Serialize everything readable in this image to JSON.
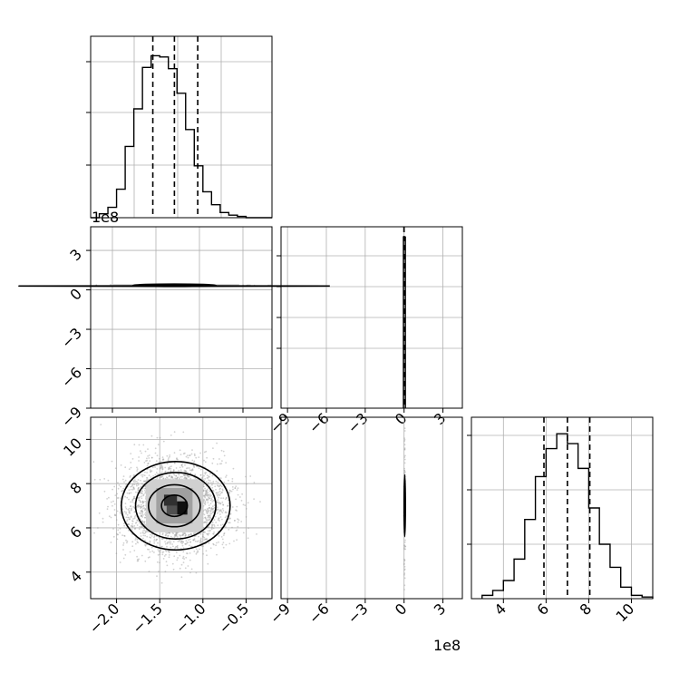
{
  "colors": {
    "line": "#000000",
    "grid": "#b0b0b0",
    "scatter": "#9a9a9a",
    "background": "#ffffff"
  },
  "offset_labels": {
    "x_axis": "1e8",
    "y_axis": "1e8"
  },
  "chart_data": [
    {
      "type": "bar",
      "panel": "hist-param-1",
      "grid": true,
      "bin_edges": [
        -2.3,
        -2.2,
        -2.1,
        -2.0,
        -1.9,
        -1.8,
        -1.7,
        -1.6,
        -1.5,
        -1.4,
        -1.3,
        -1.2,
        -1.1,
        -1.0,
        -0.9,
        -0.8,
        -0.7,
        -0.6,
        -0.5,
        -0.4,
        -0.3,
        -0.2
      ],
      "values": [
        0,
        3,
        8,
        22,
        55,
        84,
        116,
        125,
        124,
        115,
        96,
        68,
        40,
        20,
        10,
        4,
        2,
        1,
        0,
        0,
        0
      ],
      "quantiles": [
        -1.58,
        -1.33,
        -1.06
      ],
      "xlim": [
        -2.3,
        -0.2
      ],
      "ylim": [
        0,
        140
      ]
    },
    {
      "type": "bar",
      "panel": "hist-param-2",
      "grid": true,
      "bin_edges": [
        -0.05,
        0.1
      ],
      "values": [
        1
      ],
      "quantiles": [
        0,
        0,
        0
      ],
      "xticks": [
        -9,
        -6,
        -3,
        0,
        3
      ],
      "xlim": [
        -9.5,
        4.5
      ],
      "ylim": [
        0,
        1.06
      ]
    },
    {
      "type": "bar",
      "panel": "hist-param-3",
      "grid": true,
      "bin_edges": [
        3.0,
        3.5,
        4.0,
        4.5,
        5.0,
        5.5,
        6.0,
        6.5,
        7.0,
        7.5,
        8.0,
        8.5,
        9.0,
        9.5,
        10.0,
        10.5,
        11.0
      ],
      "values": [
        2,
        5,
        11,
        24,
        48,
        74,
        91,
        100,
        94,
        79,
        55,
        33,
        19,
        7,
        2,
        1
      ],
      "quantiles": [
        5.9,
        7.0,
        8.05
      ],
      "xticks": [
        4,
        6,
        8,
        10
      ],
      "xlim": [
        2.5,
        11.0
      ],
      "ylim": [
        0,
        110
      ]
    },
    {
      "type": "scatter",
      "panel": "2d-param-1-vs-param-2",
      "grid": true,
      "yticks": [
        3,
        0,
        -3,
        -6,
        -9
      ],
      "xlim": [
        -2.3,
        -0.2
      ],
      "ylim": [
        -9.0,
        4.8
      ],
      "center": [
        -1.33,
        0.35
      ],
      "spread": [
        0.3,
        0.2
      ]
    },
    {
      "type": "scatter",
      "panel": "2d-param-1-vs-param-3",
      "grid": true,
      "xticks": [
        -2.0,
        -1.5,
        -1.0,
        -0.5
      ],
      "xtick_labels": [
        "−2.0",
        "−1.5",
        "−1.0",
        "−0.5"
      ],
      "yticks": [
        4,
        6,
        8,
        10
      ],
      "xlim": [
        -2.3,
        -0.2
      ],
      "ylim": [
        2.8,
        11.0
      ],
      "center": [
        -1.33,
        7.0
      ],
      "spread": [
        0.3,
        1.0
      ]
    },
    {
      "type": "scatter",
      "panel": "2d-param-2-vs-param-3",
      "grid": true,
      "xticks": [
        -9,
        -6,
        -3,
        0,
        3
      ],
      "xlim": [
        -9.5,
        4.5
      ],
      "ylim": [
        2.8,
        11.0
      ],
      "center": [
        0.05,
        7.0
      ],
      "spread": [
        0.1,
        1.0
      ]
    }
  ]
}
